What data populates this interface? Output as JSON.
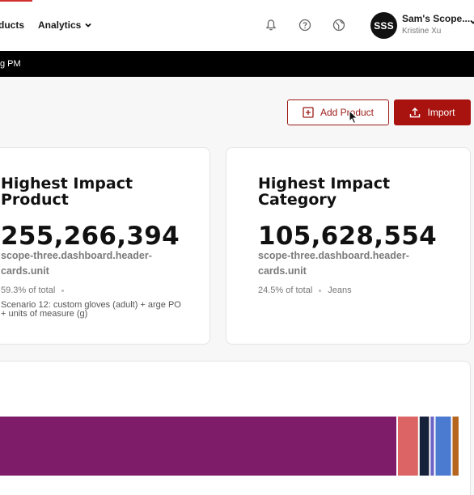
{
  "header": {
    "nav": [
      {
        "label": "ducts"
      },
      {
        "label": "Analytics"
      }
    ],
    "icons": [
      "bell-icon",
      "help-icon",
      "globe-icon",
      "chevron-down-icon"
    ],
    "user": {
      "initials": "SSS",
      "name": "Sam's Scope...",
      "subtitle": "Kristine Xu"
    }
  },
  "banner": {
    "text": "g PM"
  },
  "actions": {
    "add_product_label": "Add Product",
    "import_label": "Import"
  },
  "cards": [
    {
      "title": "Highest Impact Product",
      "value": "255,266,394",
      "unit": "scope-three.dashboard.header-cards.unit",
      "percent": "59.3% of total",
      "detail": "Scenario 12: custom gloves (adult) + arge PO + units of measure (g)"
    },
    {
      "title": "Highest Impact Category",
      "value": "105,628,554",
      "unit": "scope-three.dashboard.header-cards.unit",
      "percent": "24.5% of total",
      "detail": "Jeans"
    }
  ],
  "colors": {
    "accent": "#a8130f",
    "banner": "#000000"
  },
  "chart_data": {
    "type": "bar",
    "orientation": "horizontal-stacked",
    "segments": [
      {
        "value": 59.3,
        "color": "#7e1c6a"
      },
      {
        "value": 3.0,
        "color": "#dd6464"
      },
      {
        "value": 1.4,
        "color": "#16213a"
      },
      {
        "value": 0.5,
        "color": "#6b63c6"
      },
      {
        "value": 2.3,
        "color": "#4b7bd0"
      },
      {
        "value": 0.9,
        "color": "#b5651d"
      }
    ]
  }
}
